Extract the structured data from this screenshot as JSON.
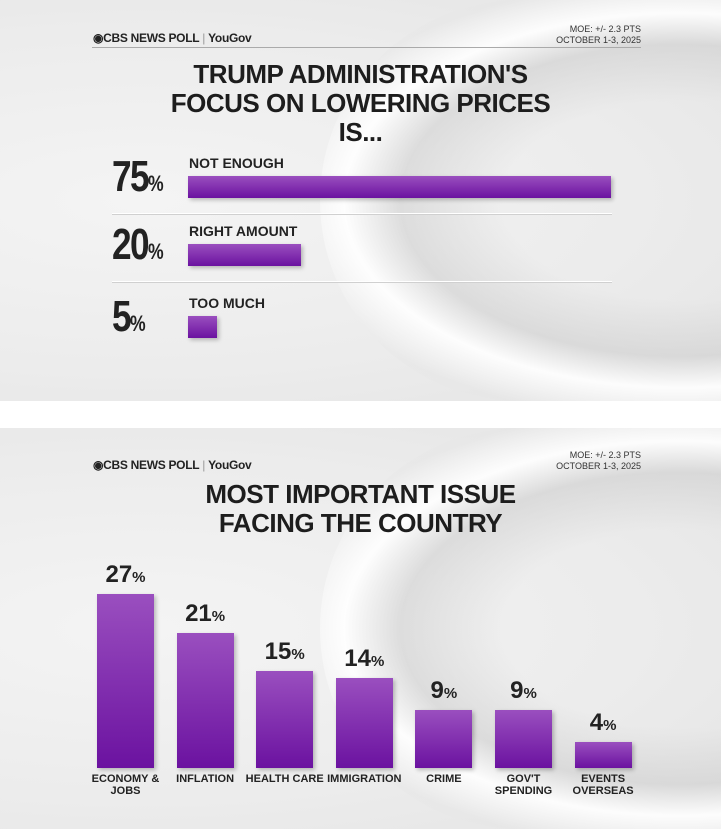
{
  "chart_data": [
    {
      "type": "bar",
      "orientation": "horizontal",
      "source": "CBS NEWS POLL",
      "partner": "YouGov",
      "moe": "MOE: +/- 2.3 PTS",
      "dates": "OCTOBER 1-3, 2025",
      "title": "TRUMP ADMINISTRATION'S FOCUS ON LOWERING PRICES IS...",
      "categories": [
        "NOT ENOUGH",
        "RIGHT AMOUNT",
        "TOO MUCH"
      ],
      "values": [
        75,
        20,
        5
      ],
      "unit": "%",
      "xlim": [
        0,
        75
      ]
    },
    {
      "type": "bar",
      "orientation": "vertical",
      "source": "CBS NEWS POLL",
      "partner": "YouGov",
      "moe": "MOE: +/- 2.3 PTS",
      "dates": "OCTOBER 1-3, 2025",
      "title": "MOST IMPORTANT ISSUE FACING THE COUNTRY",
      "categories": [
        "ECONOMY & JOBS",
        "INFLATION",
        "HEALTH CARE",
        "IMMIGRATION",
        "CRIME",
        "GOV'T SPENDING",
        "EVENTS OVERSEAS"
      ],
      "values": [
        27,
        21,
        15,
        14,
        9,
        9,
        4
      ],
      "unit": "%",
      "ylim": [
        0,
        27
      ]
    }
  ],
  "colors": {
    "bar": "#7d2bb0"
  }
}
